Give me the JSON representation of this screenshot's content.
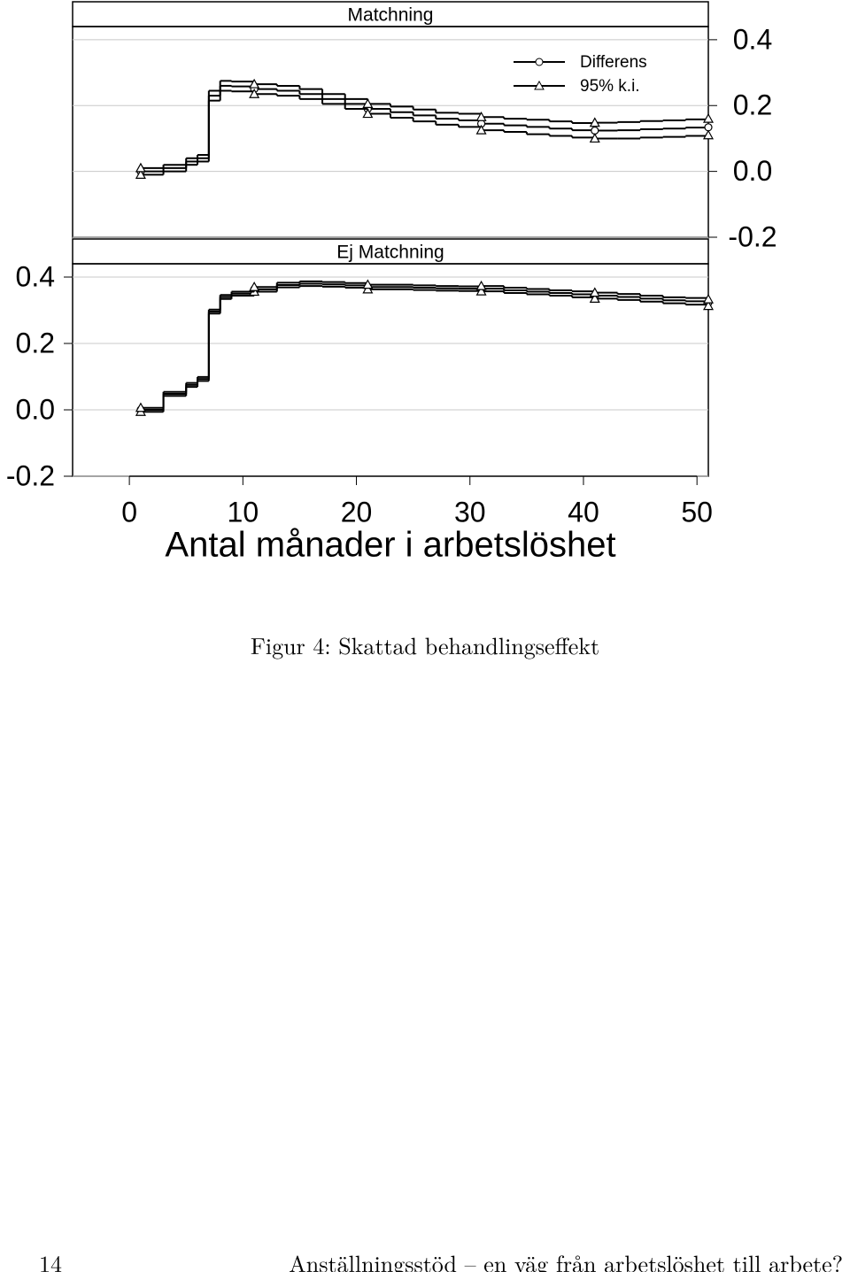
{
  "chart_data": {
    "type": "step",
    "xlabel": "Antal månader i arbetslöshet",
    "xlim": [
      -5,
      51
    ],
    "xticks": [
      0,
      10,
      20,
      30,
      40,
      50
    ],
    "ylim": [
      -0.2,
      0.44
    ],
    "yticks": [
      -0.2,
      {
        "value": 0,
        "label": "0.0"
      },
      0.2,
      0.4
    ],
    "grid": true,
    "color": "#000000",
    "series": [
      {
        "name": "Differens",
        "marker": "circle"
      },
      {
        "name": "95% k.i.",
        "marker": "triangle"
      }
    ],
    "x": [
      1,
      3,
      5,
      6,
      7,
      8,
      9,
      11,
      13,
      15,
      17,
      19,
      21,
      23,
      25,
      27,
      29,
      31,
      33,
      35,
      37,
      39,
      41,
      43,
      45,
      47,
      49,
      51
    ],
    "panels": [
      {
        "title": "Matchning",
        "axis_side": "right",
        "differens": [
          0.0,
          0.01,
          0.03,
          0.04,
          0.23,
          0.26,
          0.258,
          0.25,
          0.245,
          0.235,
          0.22,
          0.205,
          0.19,
          0.18,
          0.17,
          0.16,
          0.155,
          0.145,
          0.14,
          0.135,
          0.13,
          0.125,
          0.124,
          0.125,
          0.128,
          0.13,
          0.133,
          0.134
        ],
        "ci_lower": [
          -0.01,
          0.0,
          0.02,
          0.03,
          0.215,
          0.245,
          0.243,
          0.235,
          0.23,
          0.22,
          0.205,
          0.19,
          0.175,
          0.163,
          0.152,
          0.142,
          0.135,
          0.125,
          0.12,
          0.113,
          0.108,
          0.103,
          0.1,
          0.1,
          0.103,
          0.105,
          0.108,
          0.11
        ],
        "ci_upper": [
          0.01,
          0.02,
          0.04,
          0.05,
          0.245,
          0.275,
          0.273,
          0.265,
          0.26,
          0.25,
          0.235,
          0.22,
          0.205,
          0.197,
          0.188,
          0.178,
          0.175,
          0.165,
          0.16,
          0.157,
          0.152,
          0.147,
          0.148,
          0.15,
          0.153,
          0.155,
          0.158,
          0.16
        ]
      },
      {
        "title": "Ej Matchning",
        "axis_side": "left",
        "differens": [
          0.0,
          0.048,
          0.075,
          0.093,
          0.296,
          0.34,
          0.35,
          0.363,
          0.376,
          0.38,
          0.378,
          0.375,
          0.37,
          0.37,
          0.368,
          0.366,
          0.365,
          0.365,
          0.36,
          0.356,
          0.352,
          0.348,
          0.344,
          0.34,
          0.335,
          0.33,
          0.327,
          0.323
        ],
        "ci_lower": [
          -0.006,
          0.042,
          0.069,
          0.087,
          0.29,
          0.334,
          0.344,
          0.356,
          0.369,
          0.373,
          0.371,
          0.368,
          0.363,
          0.363,
          0.361,
          0.359,
          0.358,
          0.357,
          0.352,
          0.348,
          0.344,
          0.339,
          0.335,
          0.331,
          0.326,
          0.321,
          0.317,
          0.313
        ],
        "ci_upper": [
          0.006,
          0.054,
          0.081,
          0.099,
          0.302,
          0.346,
          0.356,
          0.37,
          0.383,
          0.387,
          0.385,
          0.382,
          0.377,
          0.377,
          0.375,
          0.373,
          0.372,
          0.373,
          0.368,
          0.364,
          0.36,
          0.357,
          0.353,
          0.349,
          0.344,
          0.339,
          0.337,
          0.333
        ]
      }
    ]
  },
  "caption": "Figur 4: Skattad behandlingseffekt",
  "footer": {
    "page_number": "14",
    "running_title": "Anställningsstöd – en väg från arbetslöshet till arbete?"
  }
}
